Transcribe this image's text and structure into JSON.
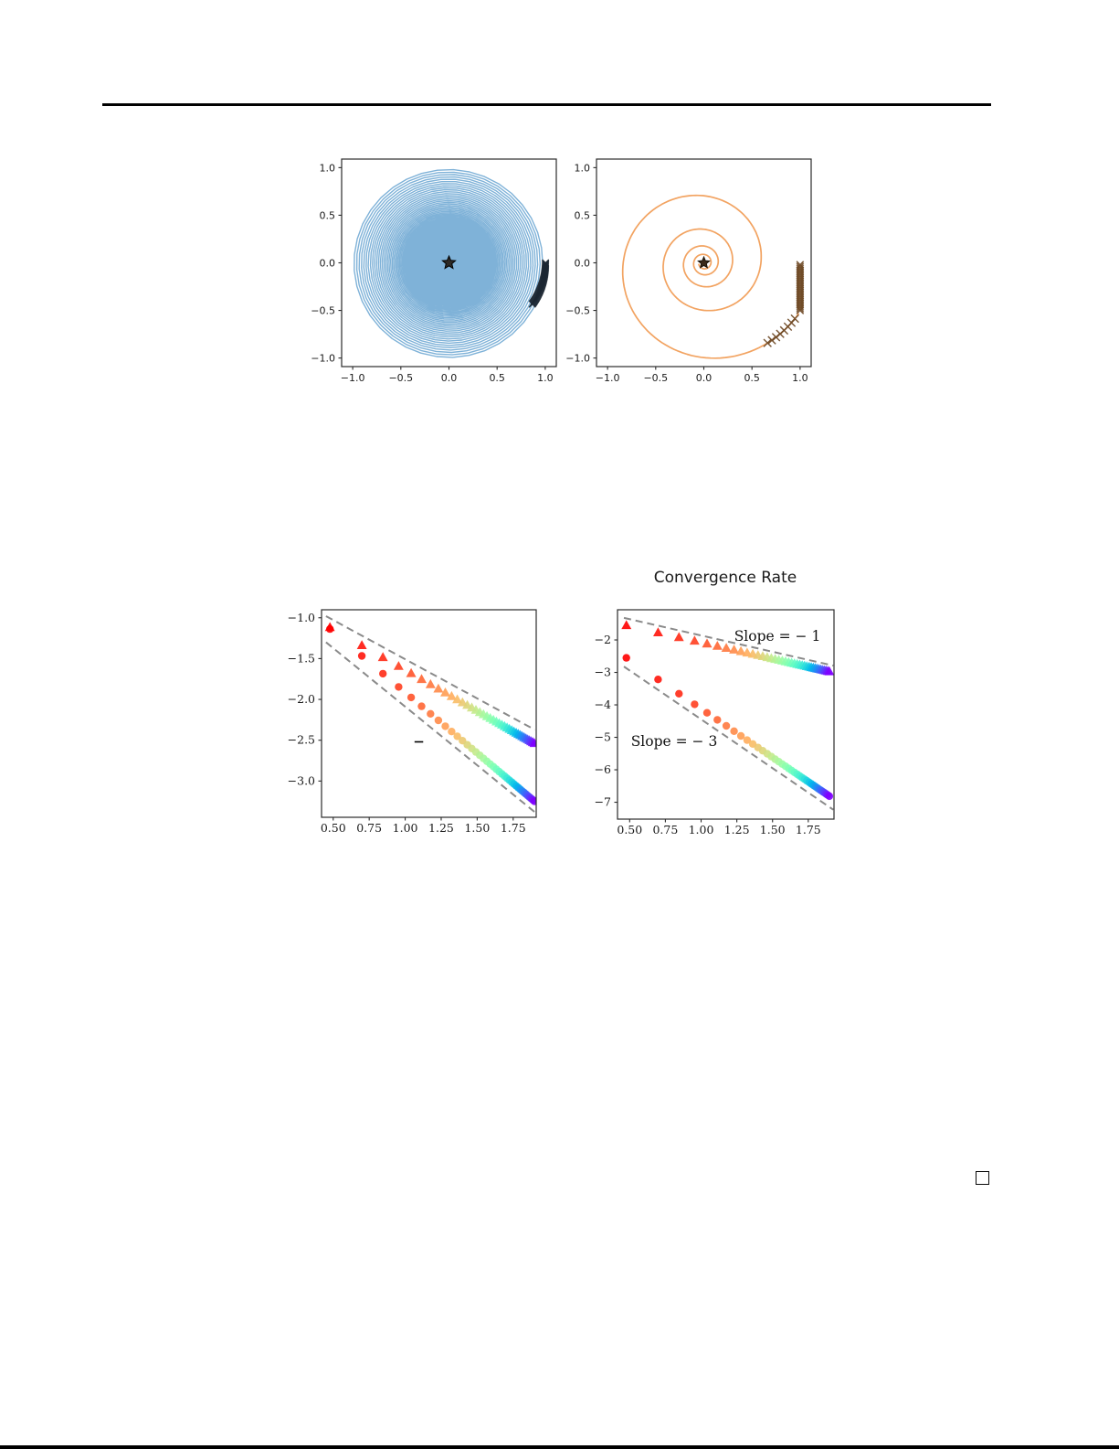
{
  "page": {
    "kind": "academic-paper-figure-page",
    "proof_end_marker": "open-square"
  },
  "chart_data": [
    {
      "id": "trajectory-slow-spiral",
      "type": "line",
      "title": "",
      "xlabel": "",
      "ylabel": "",
      "xlim": [
        -1.115,
        1.115
      ],
      "ylim": [
        -1.09,
        1.09
      ],
      "grid": false,
      "tick_font": "sans",
      "xticks": {
        "values": [
          -1.0,
          -0.5,
          0.0,
          0.5,
          1.0
        ],
        "labels": [
          "−1.0",
          "−0.5",
          "0.0",
          "0.5",
          "1.0"
        ]
      },
      "yticks": {
        "values": [
          -1.0,
          -0.5,
          0.0,
          0.5,
          1.0
        ],
        "labels": [
          "−1.0",
          "−0.5",
          "0.0",
          "0.5",
          "1.0"
        ]
      },
      "series": [
        {
          "name": "continuous-trajectory",
          "kind": "spiral",
          "color": "#7FB2D8",
          "linewidth": 1.4,
          "start_radius": 1.0,
          "decay_per_radian": 0.0043,
          "theta_end_rad": 942.5,
          "start_angle_rad": 0.0,
          "direction": "clockwise"
        },
        {
          "name": "iterates",
          "kind": "arc-markers",
          "marker": "x",
          "color": "#1C2733",
          "count": 55,
          "size": 3.6,
          "angle_start_rad": 0.0,
          "angle_end_rad": -0.465,
          "r_start": 1.003,
          "r_end": 0.968
        },
        {
          "name": "equilibrium",
          "kind": "star",
          "x": 0,
          "y": 0,
          "color": "#2E2A26",
          "edge": "#000000",
          "size": 7.5
        }
      ]
    },
    {
      "id": "trajectory-fast-spiral",
      "type": "line",
      "title": "",
      "xlabel": "",
      "ylabel": "",
      "xlim": [
        -1.115,
        1.115
      ],
      "ylim": [
        -1.09,
        1.09
      ],
      "grid": false,
      "tick_font": "sans",
      "xticks": {
        "values": [
          -1.0,
          -0.5,
          0.0,
          0.5,
          1.0
        ],
        "labels": [
          "−1.0",
          "−0.5",
          "0.0",
          "0.5",
          "1.0"
        ]
      },
      "yticks": {
        "values": [
          -1.0,
          -0.5,
          0.0,
          0.5,
          1.0
        ],
        "labels": [
          "−1.0",
          "−0.5",
          "0.0",
          "0.5",
          "1.0"
        ]
      },
      "series": [
        {
          "name": "continuous-trajectory",
          "kind": "spiral",
          "color": "#F2A361",
          "linewidth": 1.7,
          "start_radius": 1.12,
          "decay_per_radian": 0.11,
          "theta_end_rad": 27.5,
          "start_angle_rad": -0.5,
          "direction": "clockwise"
        },
        {
          "name": "iterates-vertical",
          "kind": "column-markers",
          "marker": "x",
          "color": "#6F4A26",
          "count": 26,
          "size": 3.8,
          "x": 1.0,
          "y_start": -0.02,
          "y_end": -0.5
        },
        {
          "name": "iterates-on-spiral",
          "kind": "spiral-markers",
          "marker": "x",
          "color": "#6F4A26",
          "count": 8,
          "size": 4.2,
          "theta_start": 0.055,
          "theta_end": 0.405
        },
        {
          "name": "equilibrium",
          "kind": "star",
          "x": 0,
          "y": 0,
          "color": "#3A2A1A",
          "edge": "#1a1208",
          "size": 6.5
        }
      ]
    },
    {
      "id": "convergence-left",
      "type": "scatter",
      "title": "",
      "xlabel": "",
      "ylabel": "",
      "xlim": [
        0.419,
        1.91
      ],
      "ylim": [
        -3.444,
        -0.902
      ],
      "grid": false,
      "tick_font": "serif",
      "xticks": {
        "values": [
          0.5,
          0.75,
          1.0,
          1.25,
          1.5,
          1.75
        ],
        "labels": [
          "0.50",
          "0.75",
          "1.00",
          "1.25",
          "1.50",
          "1.75"
        ]
      },
      "yticks": {
        "values": [
          -1.0,
          -1.5,
          -2.0,
          -2.5,
          -3.0
        ],
        "labels": [
          "−1.0",
          "−1.5",
          "−2.0",
          "−2.5",
          "−3.0"
        ]
      },
      "x_rule": "x = log10(k), k = 3,5,7,...,79",
      "colormap": "rainbow_reversed",
      "series": [
        {
          "name": "error-order-1",
          "marker": "triangle",
          "slope": -1.0,
          "intercept": -0.64,
          "k_start": 3,
          "k_end": 79,
          "k_step": 2,
          "size": 5.0
        },
        {
          "name": "error-order-1.5",
          "marker": "circle",
          "slope": -1.485,
          "intercept": -0.43,
          "k_start": 3,
          "k_end": 79,
          "k_step": 2,
          "size": 4.2
        }
      ],
      "guides": [
        {
          "x1": 0.45,
          "y1": -0.98,
          "x2": 1.9,
          "y2": -2.372,
          "style": "dashed",
          "color": "#8a8a8a"
        },
        {
          "x1": 0.45,
          "y1": -1.3,
          "x2": 1.9,
          "y2": -3.38,
          "style": "dashed",
          "color": "#8a8a8a"
        }
      ],
      "extra_line": {
        "x1": 1.065,
        "y1": -2.52,
        "x2": 1.125,
        "y2": -2.52,
        "color": "#000000"
      },
      "annotations": []
    },
    {
      "id": "convergence-right",
      "type": "scatter",
      "title": "Convergence Rate",
      "xlabel": "",
      "ylabel": "",
      "xlim": [
        0.415,
        1.93
      ],
      "ylim": [
        -7.52,
        -1.07
      ],
      "grid": false,
      "tick_font": "serif",
      "xticks": {
        "values": [
          0.5,
          0.75,
          1.0,
          1.25,
          1.5,
          1.75
        ],
        "labels": [
          "0.50",
          "0.75",
          "1.00",
          "1.25",
          "1.50",
          "1.75"
        ]
      },
      "yticks": {
        "values": [
          -2,
          -3,
          -4,
          -5,
          -6,
          -7
        ],
        "labels": [
          "−2",
          "−3",
          "−4",
          "−5",
          "−6",
          "−7"
        ]
      },
      "x_rule": "x = log10(k), k = 3,5,7,...,79",
      "colormap": "rainbow_reversed",
      "series": [
        {
          "name": "error-slope-1",
          "marker": "triangle",
          "slope": -1.0,
          "intercept": -1.075,
          "k_start": 3,
          "k_end": 79,
          "k_step": 2,
          "size": 5.0
        },
        {
          "name": "error-slope-3",
          "marker": "circle",
          "slope": -3.0,
          "intercept": -1.12,
          "k_start": 3,
          "k_end": 79,
          "k_step": 2,
          "size": 4.2
        }
      ],
      "guides": [
        {
          "x1": 0.46,
          "y1": -1.32,
          "x2": 1.925,
          "y2": -2.79,
          "style": "dashed",
          "color": "#8a8a8a"
        },
        {
          "x1": 0.46,
          "y1": -2.82,
          "x2": 1.925,
          "y2": -7.23,
          "style": "dashed",
          "color": "#8a8a8a"
        }
      ],
      "annotations": [
        {
          "text": "Slope = − 1",
          "anchor": "slope1"
        },
        {
          "text": "Slope = − 3",
          "anchor": "slope3"
        }
      ]
    }
  ],
  "colors": {
    "spiral_blue": "#7FB2D8",
    "spiral_orange": "#F2A361",
    "iterate_dark": "#1C2733",
    "iterate_brown": "#6F4A26",
    "guide_gray": "#8a8a8a",
    "rainbow_start": "#ff0000",
    "rainbow_end": "#8000ff"
  }
}
